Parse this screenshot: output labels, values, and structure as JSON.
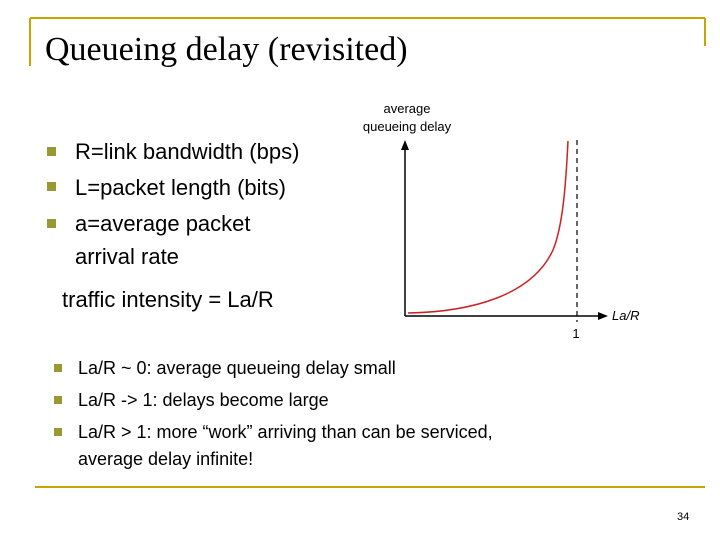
{
  "title": "Queueing delay (revisited)",
  "bullets": [
    [
      "R=link bandwidth (bps)"
    ],
    [
      "L=packet length (bits)"
    ],
    [
      "a=average packet",
      "arrival rate"
    ]
  ],
  "traffic_intensity": "traffic intensity = La/R",
  "graph": {
    "y_label": [
      "average",
      "queueing delay"
    ],
    "x_label": "La/R",
    "x_tick": "1"
  },
  "bottom_bullets": [
    [
      "La/R ~ 0: average queueing delay small"
    ],
    [
      "La/R -> 1: delays become large"
    ],
    [
      "La/R > 1: more “work” arriving than can be serviced,",
      "average delay infinite!"
    ]
  ],
  "page_number": "34"
}
